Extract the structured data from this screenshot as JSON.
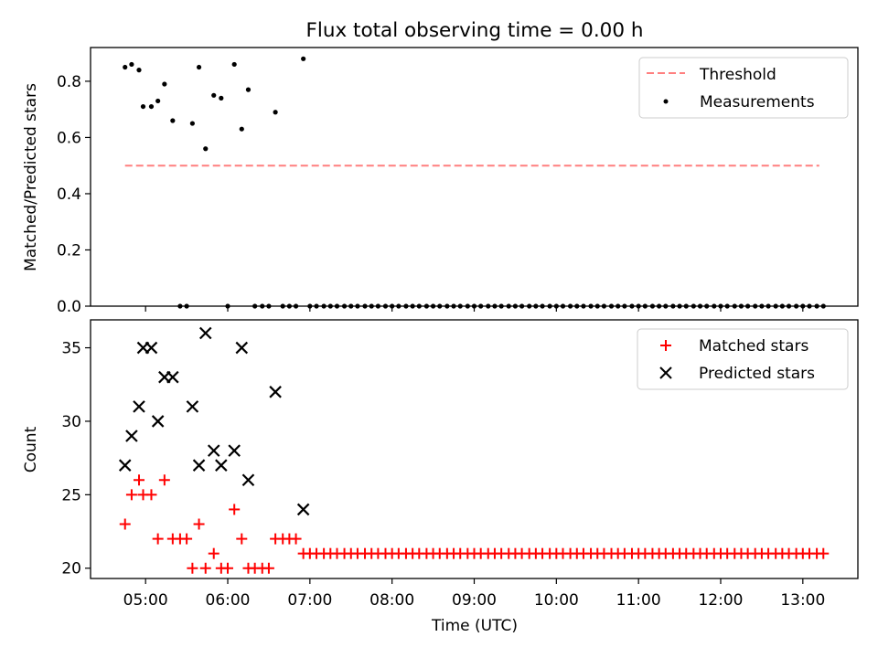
{
  "figure": {
    "title": "Flux total observing time = 0.00 h"
  },
  "colors": {
    "threshold": "#ff7f7f",
    "measurement": "#000000",
    "matched": "#ff0000",
    "predicted": "#000000"
  },
  "chart_data": [
    {
      "type": "scatter",
      "title": "Flux total observing time = 0.00 h",
      "xlabel": "",
      "ylabel": "Matched/Predicted stars",
      "x_unit": "time (UTC, hours)",
      "xlim": [
        4.33,
        13.67
      ],
      "ylim": [
        0.0,
        0.92
      ],
      "y_ticks": [
        0.0,
        0.2,
        0.4,
        0.6,
        0.8
      ],
      "y_tick_labels": [
        "0.0",
        "0.2",
        "0.4",
        "0.6",
        "0.8"
      ],
      "legend_position": "top-right",
      "legend": [
        "Threshold",
        "Measurements"
      ],
      "grid": false,
      "threshold": {
        "name": "Threshold",
        "style": "dashed",
        "x": [
          4.75,
          13.2
        ],
        "y": 0.5
      },
      "series": [
        {
          "name": "Measurements",
          "marker": "dot",
          "points": [
            [
              4.75,
              0.85
            ],
            [
              4.83,
              0.86
            ],
            [
              4.92,
              0.84
            ],
            [
              4.97,
              0.71
            ],
            [
              5.07,
              0.71
            ],
            [
              5.15,
              0.73
            ],
            [
              5.23,
              0.79
            ],
            [
              5.33,
              0.66
            ],
            [
              5.42,
              0.0
            ],
            [
              5.5,
              0.0
            ],
            [
              5.57,
              0.65
            ],
            [
              5.65,
              0.85
            ],
            [
              5.73,
              0.56
            ],
            [
              5.83,
              0.75
            ],
            [
              5.92,
              0.74
            ],
            [
              6.0,
              0.0
            ],
            [
              6.08,
              0.86
            ],
            [
              6.17,
              0.63
            ],
            [
              6.25,
              0.77
            ],
            [
              6.33,
              0.0
            ],
            [
              6.42,
              0.0
            ],
            [
              6.5,
              0.0
            ],
            [
              6.58,
              0.69
            ],
            [
              6.67,
              0.0
            ],
            [
              6.75,
              0.0
            ],
            [
              6.83,
              0.0
            ],
            [
              6.92,
              0.88
            ],
            [
              7.0,
              0.0
            ],
            [
              7.08,
              0.0
            ],
            [
              7.17,
              0.0
            ],
            [
              7.25,
              0.0
            ],
            [
              7.33,
              0.0
            ],
            [
              7.42,
              0.0
            ],
            [
              7.5,
              0.0
            ],
            [
              7.58,
              0.0
            ],
            [
              7.67,
              0.0
            ],
            [
              7.75,
              0.0
            ],
            [
              7.83,
              0.0
            ],
            [
              7.92,
              0.0
            ],
            [
              8.0,
              0.0
            ],
            [
              8.08,
              0.0
            ],
            [
              8.17,
              0.0
            ],
            [
              8.25,
              0.0
            ],
            [
              8.33,
              0.0
            ],
            [
              8.42,
              0.0
            ],
            [
              8.5,
              0.0
            ],
            [
              8.58,
              0.0
            ],
            [
              8.67,
              0.0
            ],
            [
              8.75,
              0.0
            ],
            [
              8.83,
              0.0
            ],
            [
              8.92,
              0.0
            ],
            [
              9.0,
              0.0
            ],
            [
              9.08,
              0.0
            ],
            [
              9.17,
              0.0
            ],
            [
              9.25,
              0.0
            ],
            [
              9.33,
              0.0
            ],
            [
              9.42,
              0.0
            ],
            [
              9.5,
              0.0
            ],
            [
              9.58,
              0.0
            ],
            [
              9.67,
              0.0
            ],
            [
              9.75,
              0.0
            ],
            [
              9.83,
              0.0
            ],
            [
              9.92,
              0.0
            ],
            [
              10.0,
              0.0
            ],
            [
              10.08,
              0.0
            ],
            [
              10.17,
              0.0
            ],
            [
              10.25,
              0.0
            ],
            [
              10.33,
              0.0
            ],
            [
              10.42,
              0.0
            ],
            [
              10.5,
              0.0
            ],
            [
              10.58,
              0.0
            ],
            [
              10.67,
              0.0
            ],
            [
              10.75,
              0.0
            ],
            [
              10.83,
              0.0
            ],
            [
              10.92,
              0.0
            ],
            [
              11.0,
              0.0
            ],
            [
              11.08,
              0.0
            ],
            [
              11.17,
              0.0
            ],
            [
              11.25,
              0.0
            ],
            [
              11.33,
              0.0
            ],
            [
              11.42,
              0.0
            ],
            [
              11.5,
              0.0
            ],
            [
              11.58,
              0.0
            ],
            [
              11.67,
              0.0
            ],
            [
              11.75,
              0.0
            ],
            [
              11.83,
              0.0
            ],
            [
              11.92,
              0.0
            ],
            [
              12.0,
              0.0
            ],
            [
              12.08,
              0.0
            ],
            [
              12.17,
              0.0
            ],
            [
              12.25,
              0.0
            ],
            [
              12.33,
              0.0
            ],
            [
              12.42,
              0.0
            ],
            [
              12.5,
              0.0
            ],
            [
              12.58,
              0.0
            ],
            [
              12.67,
              0.0
            ],
            [
              12.75,
              0.0
            ],
            [
              12.83,
              0.0
            ],
            [
              12.92,
              0.0
            ],
            [
              13.0,
              0.0
            ],
            [
              13.08,
              0.0
            ],
            [
              13.17,
              0.0
            ],
            [
              13.25,
              0.0
            ]
          ]
        }
      ]
    },
    {
      "type": "scatter",
      "title": "",
      "xlabel": "Time (UTC)",
      "ylabel": "Count",
      "x_unit": "time (UTC, hours)",
      "xlim": [
        4.33,
        13.67
      ],
      "ylim": [
        19.3,
        36.9
      ],
      "y_ticks": [
        20,
        25,
        30,
        35
      ],
      "y_tick_labels": [
        "20",
        "25",
        "30",
        "35"
      ],
      "x_ticks": [
        5,
        6,
        7,
        8,
        9,
        10,
        11,
        12,
        13
      ],
      "x_tick_labels": [
        "05:00",
        "06:00",
        "07:00",
        "08:00",
        "09:00",
        "10:00",
        "11:00",
        "12:00",
        "13:00"
      ],
      "legend_position": "top-right",
      "legend": [
        "Matched stars",
        "Predicted stars"
      ],
      "grid": false,
      "series": [
        {
          "name": "Matched stars",
          "marker": "plus",
          "points": [
            [
              4.75,
              23
            ],
            [
              4.83,
              25
            ],
            [
              4.92,
              26
            ],
            [
              4.97,
              25
            ],
            [
              5.07,
              25
            ],
            [
              5.15,
              22
            ],
            [
              5.23,
              26
            ],
            [
              5.33,
              22
            ],
            [
              5.42,
              22
            ],
            [
              5.5,
              22
            ],
            [
              5.57,
              20
            ],
            [
              5.65,
              23
            ],
            [
              5.73,
              20
            ],
            [
              5.83,
              21
            ],
            [
              5.92,
              20
            ],
            [
              6.0,
              20
            ],
            [
              6.08,
              24
            ],
            [
              6.17,
              22
            ],
            [
              6.25,
              20
            ],
            [
              6.33,
              20
            ],
            [
              6.42,
              20
            ],
            [
              6.5,
              20
            ],
            [
              6.58,
              22
            ],
            [
              6.67,
              22
            ],
            [
              6.75,
              22
            ],
            [
              6.83,
              22
            ],
            [
              6.92,
              21
            ],
            [
              7.0,
              21
            ],
            [
              7.08,
              21
            ],
            [
              7.17,
              21
            ],
            [
              7.25,
              21
            ],
            [
              7.33,
              21
            ],
            [
              7.42,
              21
            ],
            [
              7.5,
              21
            ],
            [
              7.58,
              21
            ],
            [
              7.67,
              21
            ],
            [
              7.75,
              21
            ],
            [
              7.83,
              21
            ],
            [
              7.92,
              21
            ],
            [
              8.0,
              21
            ],
            [
              8.08,
              21
            ],
            [
              8.17,
              21
            ],
            [
              8.25,
              21
            ],
            [
              8.33,
              21
            ],
            [
              8.42,
              21
            ],
            [
              8.5,
              21
            ],
            [
              8.58,
              21
            ],
            [
              8.67,
              21
            ],
            [
              8.75,
              21
            ],
            [
              8.83,
              21
            ],
            [
              8.92,
              21
            ],
            [
              9.0,
              21
            ],
            [
              9.08,
              21
            ],
            [
              9.17,
              21
            ],
            [
              9.25,
              21
            ],
            [
              9.33,
              21
            ],
            [
              9.42,
              21
            ],
            [
              9.5,
              21
            ],
            [
              9.58,
              21
            ],
            [
              9.67,
              21
            ],
            [
              9.75,
              21
            ],
            [
              9.83,
              21
            ],
            [
              9.92,
              21
            ],
            [
              10.0,
              21
            ],
            [
              10.08,
              21
            ],
            [
              10.17,
              21
            ],
            [
              10.25,
              21
            ],
            [
              10.33,
              21
            ],
            [
              10.42,
              21
            ],
            [
              10.5,
              21
            ],
            [
              10.58,
              21
            ],
            [
              10.67,
              21
            ],
            [
              10.75,
              21
            ],
            [
              10.83,
              21
            ],
            [
              10.92,
              21
            ],
            [
              11.0,
              21
            ],
            [
              11.08,
              21
            ],
            [
              11.17,
              21
            ],
            [
              11.25,
              21
            ],
            [
              11.33,
              21
            ],
            [
              11.42,
              21
            ],
            [
              11.5,
              21
            ],
            [
              11.58,
              21
            ],
            [
              11.67,
              21
            ],
            [
              11.75,
              21
            ],
            [
              11.83,
              21
            ],
            [
              11.92,
              21
            ],
            [
              12.0,
              21
            ],
            [
              12.08,
              21
            ],
            [
              12.17,
              21
            ],
            [
              12.25,
              21
            ],
            [
              12.33,
              21
            ],
            [
              12.42,
              21
            ],
            [
              12.5,
              21
            ],
            [
              12.58,
              21
            ],
            [
              12.67,
              21
            ],
            [
              12.75,
              21
            ],
            [
              12.83,
              21
            ],
            [
              12.92,
              21
            ],
            [
              13.0,
              21
            ],
            [
              13.08,
              21
            ],
            [
              13.17,
              21
            ],
            [
              13.25,
              21
            ]
          ]
        },
        {
          "name": "Predicted stars",
          "marker": "x",
          "points": [
            [
              4.75,
              27
            ],
            [
              4.83,
              29
            ],
            [
              4.92,
              31
            ],
            [
              4.97,
              35
            ],
            [
              5.07,
              35
            ],
            [
              5.15,
              30
            ],
            [
              5.23,
              33
            ],
            [
              5.33,
              33
            ],
            [
              5.57,
              31
            ],
            [
              5.65,
              27
            ],
            [
              5.73,
              36
            ],
            [
              5.83,
              28
            ],
            [
              5.92,
              27
            ],
            [
              6.08,
              28
            ],
            [
              6.17,
              35
            ],
            [
              6.25,
              26
            ],
            [
              6.58,
              32
            ],
            [
              6.92,
              24
            ]
          ]
        }
      ]
    }
  ]
}
